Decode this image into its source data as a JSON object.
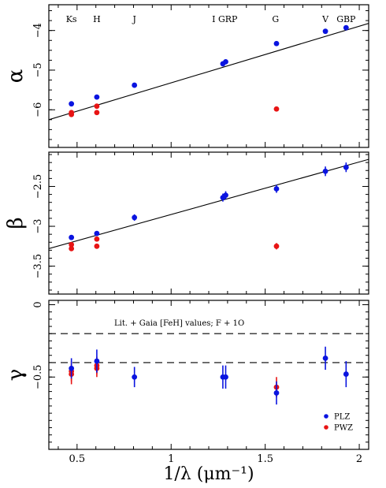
{
  "chart_data": {
    "type": "scatter",
    "xlabel": "1/λ (μm⁻¹)",
    "xlim": [
      0.35,
      2.05
    ],
    "xticks": [
      {
        "value": 0.5,
        "label": "0.5"
      },
      {
        "value": 1.0,
        "label": "1"
      },
      {
        "value": 1.5,
        "label": "1.5"
      },
      {
        "value": 2.0,
        "label": "2"
      }
    ],
    "legend_position": "bottom-right",
    "colors": {
      "PLZ": "#0a14e0",
      "PWZ": "#e81414"
    },
    "band_labels": [
      {
        "label": "Ks",
        "x": 0.47
      },
      {
        "label": "H",
        "x": 0.605
      },
      {
        "label": "J",
        "x": 0.805
      },
      {
        "label": "I GRP",
        "x": 1.285
      },
      {
        "label": "G",
        "x": 1.555
      },
      {
        "label": "V",
        "x": 1.82
      },
      {
        "label": "GBP",
        "x": 1.93
      }
    ],
    "panels": [
      {
        "ylabel": "α",
        "ylim": [
          -6.95,
          -3.35
        ],
        "yticks": [
          {
            "value": -4,
            "label": "−4"
          },
          {
            "value": -5,
            "label": "−5"
          },
          {
            "value": -6,
            "label": "−6"
          }
        ],
        "fit_line": {
          "x": [
            0.35,
            2.05
          ],
          "y": [
            -6.25,
            -3.82
          ]
        },
        "series": [
          {
            "name": "PLZ",
            "points": [
              {
                "x": 0.47,
                "y": -5.85,
                "err": 0.04
              },
              {
                "x": 0.605,
                "y": -5.68,
                "err": 0.04
              },
              {
                "x": 0.805,
                "y": -5.38,
                "err": 0.04
              },
              {
                "x": 1.275,
                "y": -4.84,
                "err": 0.05
              },
              {
                "x": 1.29,
                "y": -4.79,
                "err": 0.05
              },
              {
                "x": 1.56,
                "y": -4.33,
                "err": 0.04
              },
              {
                "x": 1.82,
                "y": -4.02,
                "err": 0.04
              },
              {
                "x": 1.93,
                "y": -3.93,
                "err": 0.04
              }
            ]
          },
          {
            "name": "PWZ",
            "points": [
              {
                "x": 0.47,
                "y": -6.07,
                "err": 0.04
              },
              {
                "x": 0.47,
                "y": -6.12,
                "err": 0.04
              },
              {
                "x": 0.605,
                "y": -5.91,
                "err": 0.04
              },
              {
                "x": 0.605,
                "y": -6.07,
                "err": 0.04
              },
              {
                "x": 1.56,
                "y": -5.98,
                "err": 0.04
              }
            ]
          }
        ]
      },
      {
        "ylabel": "β",
        "ylim": [
          -3.85,
          -2.07
        ],
        "yticks": [
          {
            "value": -2.5,
            "label": "−2.5"
          },
          {
            "value": -3,
            "label": "−3"
          },
          {
            "value": -3.5,
            "label": "−3.5"
          }
        ],
        "fit_line": {
          "x": [
            0.35,
            2.05
          ],
          "y": [
            -3.28,
            -2.16
          ]
        },
        "series": [
          {
            "name": "PLZ",
            "points": [
              {
                "x": 0.47,
                "y": -3.14,
                "err": 0.03
              },
              {
                "x": 0.605,
                "y": -3.09,
                "err": 0.03
              },
              {
                "x": 0.805,
                "y": -2.89,
                "err": 0.04
              },
              {
                "x": 1.275,
                "y": -2.64,
                "err": 0.05
              },
              {
                "x": 1.29,
                "y": -2.61,
                "err": 0.05
              },
              {
                "x": 1.56,
                "y": -2.53,
                "err": 0.05
              },
              {
                "x": 1.82,
                "y": -2.31,
                "err": 0.06
              },
              {
                "x": 1.93,
                "y": -2.26,
                "err": 0.06
              }
            ]
          },
          {
            "name": "PWZ",
            "points": [
              {
                "x": 0.47,
                "y": -3.23,
                "err": 0.03
              },
              {
                "x": 0.47,
                "y": -3.28,
                "err": 0.03
              },
              {
                "x": 0.605,
                "y": -3.16,
                "err": 0.03
              },
              {
                "x": 0.605,
                "y": -3.25,
                "err": 0.03
              },
              {
                "x": 1.56,
                "y": -3.25,
                "err": 0.04
              }
            ]
          }
        ]
      },
      {
        "ylabel": "γ",
        "ylim": [
          -1.0,
          0.03
        ],
        "yticks": [
          {
            "value": 0,
            "label": "0"
          },
          {
            "value": -0.5,
            "label": "−0.5"
          }
        ],
        "hlines": [
          -0.2,
          -0.4
        ],
        "annotation": "Lit. + Gaia [FeH] values; F + 1O",
        "series": [
          {
            "name": "PLZ",
            "points": [
              {
                "x": 0.47,
                "y": -0.44,
                "err": 0.07
              },
              {
                "x": 0.605,
                "y": -0.39,
                "err": 0.08
              },
              {
                "x": 0.805,
                "y": -0.5,
                "err": 0.07
              },
              {
                "x": 1.275,
                "y": -0.5,
                "err": 0.08
              },
              {
                "x": 1.29,
                "y": -0.5,
                "err": 0.08
              },
              {
                "x": 1.56,
                "y": -0.61,
                "err": 0.08
              },
              {
                "x": 1.82,
                "y": -0.37,
                "err": 0.08
              },
              {
                "x": 1.93,
                "y": -0.48,
                "err": 0.09
              }
            ]
          },
          {
            "name": "PWZ",
            "points": [
              {
                "x": 0.47,
                "y": -0.46,
                "err": 0.07
              },
              {
                "x": 0.47,
                "y": -0.48,
                "err": 0.07
              },
              {
                "x": 0.605,
                "y": -0.42,
                "err": 0.06
              },
              {
                "x": 0.605,
                "y": -0.44,
                "err": 0.06
              },
              {
                "x": 1.56,
                "y": -0.57,
                "err": 0.07
              }
            ]
          }
        ]
      }
    ]
  }
}
